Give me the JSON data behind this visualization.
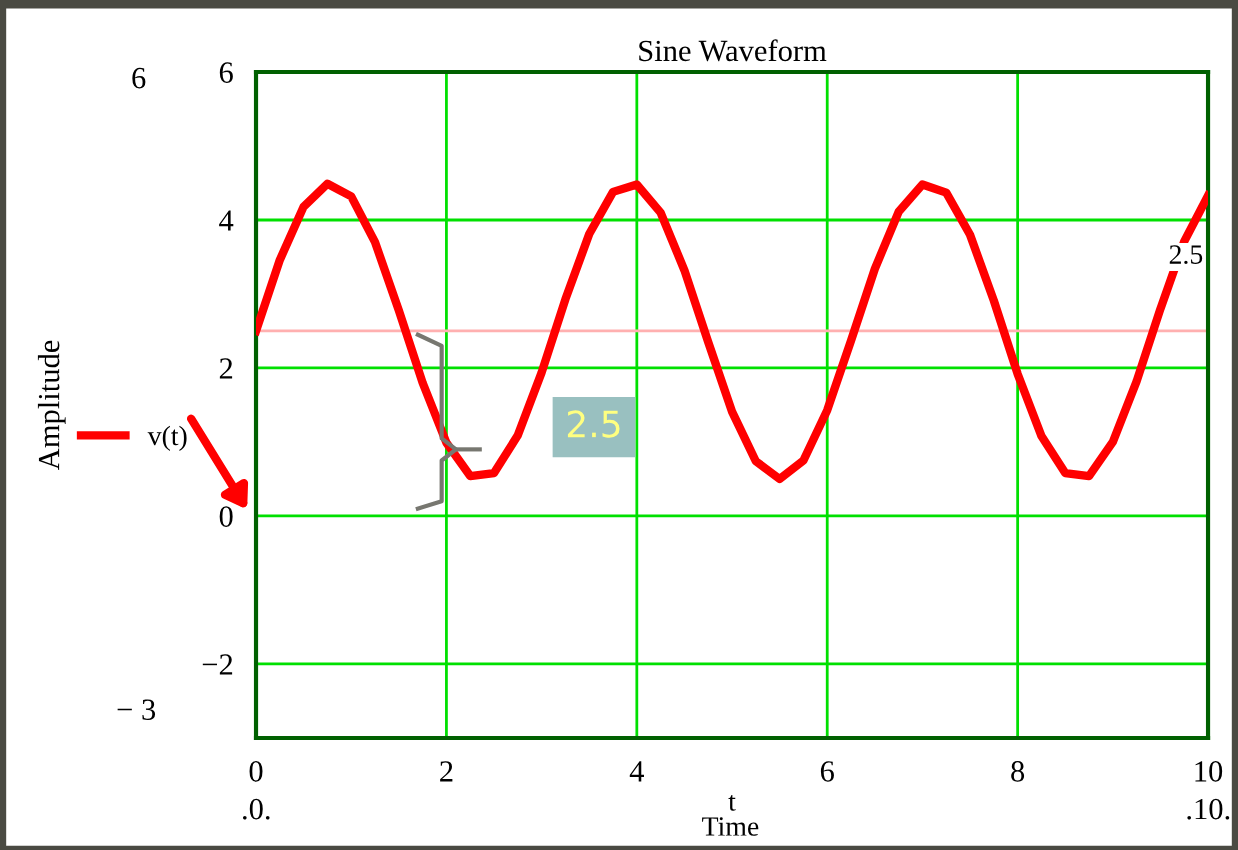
{
  "chart_data": {
    "type": "line",
    "title": "Sine Waveform",
    "xlabel": "t",
    "ylabel": "Amplitude",
    "x": [
      0,
      0.25,
      0.5,
      0.75,
      1,
      1.25,
      1.5,
      1.75,
      2,
      2.25,
      2.5,
      2.75,
      3,
      3.25,
      3.5,
      3.75,
      4,
      4.25,
      4.5,
      4.75,
      5,
      5.25,
      5.5,
      5.75,
      6,
      6.25,
      6.5,
      6.75,
      7,
      7.25,
      7.5,
      7.75,
      8,
      8.25,
      8.5,
      8.75,
      9,
      9.25,
      9.5,
      9.75,
      10
    ],
    "series": [
      {
        "name": "v(t)",
        "color": "#ff0000",
        "values": [
          2.5,
          3.46,
          4.18,
          4.49,
          4.32,
          3.7,
          2.78,
          1.8,
          0.99,
          0.54,
          0.58,
          1.09,
          1.94,
          2.93,
          3.81,
          4.38,
          4.48,
          4.1,
          3.32,
          2.35,
          1.41,
          0.74,
          0.5,
          0.75,
          1.43,
          2.37,
          3.34,
          4.11,
          4.48,
          4.37,
          3.8,
          2.91,
          1.92,
          1.08,
          0.58,
          0.54,
          1.0,
          1.82,
          2.8,
          3.71,
          4.33
        ]
      }
    ],
    "xlim": [
      0,
      10
    ],
    "xticks": [
      0,
      2,
      4,
      6,
      8,
      10
    ],
    "ylim": [
      -3,
      6
    ],
    "yticks": [
      -2,
      0,
      2,
      4,
      6
    ],
    "grid": true,
    "legend": "left",
    "marker": "none",
    "line_style": "solid",
    "ref_lines": [
      {
        "axis": "y",
        "value": 2.5,
        "label": "2.5",
        "color": "#ffb0b0"
      }
    ],
    "annotations": [
      {
        "text": "2.5",
        "x": 3.55,
        "y": 1.2
      },
      "6",
      "− 3",
      ".0.",
      ".10.",
      "Time"
    ]
  }
}
